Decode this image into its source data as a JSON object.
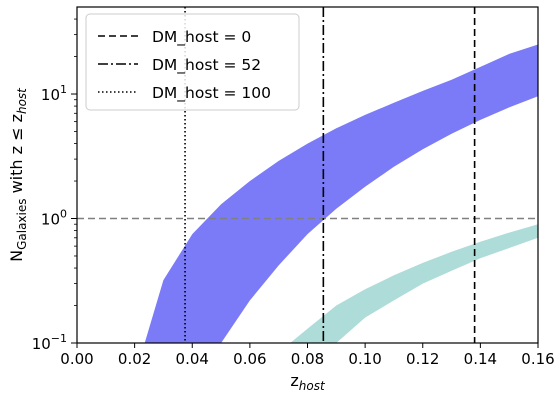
{
  "chart_data": {
    "type": "area",
    "xlabel": "z",
    "xlabel_sub": "host",
    "ylabel_main": "N",
    "ylabel_sub": "Galaxies",
    "ylabel_rest": " with z ≤ z",
    "ylabel_rest_sub": "host",
    "xlim": [
      0.0,
      0.16
    ],
    "ylim": [
      0.1,
      50
    ],
    "yscale": "log",
    "x_ticks": [
      0.0,
      0.02,
      0.04,
      0.06,
      0.08,
      0.1,
      0.12,
      0.14,
      0.16
    ],
    "x_tick_labels": [
      "0.00",
      "0.02",
      "0.04",
      "0.06",
      "0.08",
      "0.10",
      "0.12",
      "0.14",
      "0.16"
    ],
    "y_ticks": [
      0.1,
      1,
      10
    ],
    "y_tick_labels": [
      {
        "base": "10",
        "exp": "−1"
      },
      {
        "base": "10",
        "exp": "0"
      },
      {
        "base": "10",
        "exp": "1"
      }
    ],
    "bands": [
      {
        "color": "#7b7bf7",
        "x": [
          0.0235,
          0.03,
          0.04,
          0.05,
          0.06,
          0.07,
          0.08,
          0.09,
          0.1,
          0.11,
          0.12,
          0.13,
          0.14,
          0.15,
          0.16
        ],
        "lower": [
          null,
          null,
          null,
          0.1,
          0.22,
          0.42,
          0.75,
          1.2,
          1.8,
          2.6,
          3.6,
          4.8,
          6.2,
          7.8,
          9.6
        ],
        "upper": [
          0.1,
          0.32,
          0.75,
          1.3,
          2.0,
          2.9,
          4.0,
          5.3,
          6.8,
          8.5,
          10.6,
          13.0,
          16.5,
          21,
          25
        ],
        "lower_start_x": 0.0355
      },
      {
        "color": "#aedcd8",
        "x": [
          0.074,
          0.08,
          0.09,
          0.1,
          0.11,
          0.12,
          0.13,
          0.14,
          0.15,
          0.16
        ],
        "lower": [
          null,
          null,
          0.1,
          0.16,
          0.22,
          0.3,
          0.38,
          0.48,
          0.58,
          0.7
        ],
        "upper": [
          0.1,
          0.13,
          0.2,
          0.27,
          0.35,
          0.44,
          0.54,
          0.65,
          0.77,
          0.9
        ],
        "lower_start_x": 0.0815
      }
    ],
    "hlines": [
      {
        "y": 1.0,
        "color": "#808080",
        "style": "dashed"
      }
    ],
    "vlines": [
      {
        "name": "DM_host = 0",
        "x": 0.138,
        "style": "dashed"
      },
      {
        "name": "DM_host = 52",
        "x": 0.0855,
        "style": "dashdot"
      },
      {
        "name": "DM_host = 100",
        "x": 0.0375,
        "style": "dotted"
      }
    ],
    "legend": {
      "placement": "upper-left",
      "entries": [
        "DM_host = 0",
        "DM_host = 52",
        "DM_host = 100"
      ]
    }
  }
}
